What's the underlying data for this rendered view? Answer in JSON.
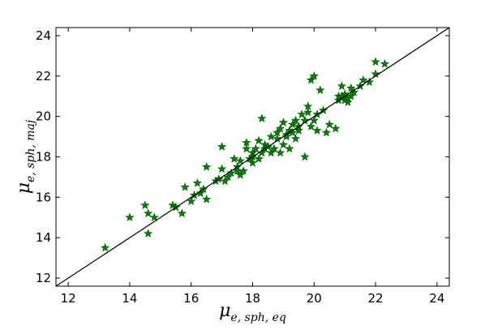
{
  "chart_data": {
    "type": "scatter",
    "xlabel": {
      "main": "μ",
      "sub": "e, sph, eq"
    },
    "ylabel": {
      "main": "μ",
      "sub": "e, sph, maj"
    },
    "xlim": [
      11.6,
      24.4
    ],
    "ylim": [
      11.6,
      24.4
    ],
    "xticks": [
      12,
      14,
      16,
      18,
      20,
      22,
      24
    ],
    "yticks": [
      12,
      14,
      16,
      18,
      20,
      22,
      24
    ],
    "marker": "star",
    "marker_color": "#008000",
    "reference_line": {
      "from": [
        11.6,
        11.6
      ],
      "to": [
        24.4,
        24.4
      ],
      "color": "#000000"
    },
    "points": [
      [
        13.2,
        13.5
      ],
      [
        14.0,
        15.0
      ],
      [
        14.5,
        15.6
      ],
      [
        14.6,
        14.2
      ],
      [
        14.6,
        15.2
      ],
      [
        14.8,
        15.0
      ],
      [
        15.4,
        15.6
      ],
      [
        15.5,
        15.5
      ],
      [
        15.7,
        15.2
      ],
      [
        15.8,
        16.5
      ],
      [
        16.0,
        15.8
      ],
      [
        16.1,
        16.1
      ],
      [
        16.2,
        16.7
      ],
      [
        16.3,
        16.2
      ],
      [
        16.4,
        16.4
      ],
      [
        16.5,
        15.9
      ],
      [
        16.5,
        17.5
      ],
      [
        16.8,
        16.8
      ],
      [
        16.9,
        16.9
      ],
      [
        17.0,
        17.4
      ],
      [
        17.0,
        18.5
      ],
      [
        17.1,
        16.8
      ],
      [
        17.2,
        17.0
      ],
      [
        17.3,
        17.2
      ],
      [
        17.4,
        17.9
      ],
      [
        17.5,
        17.5
      ],
      [
        17.5,
        17.3
      ],
      [
        17.6,
        17.8
      ],
      [
        17.6,
        17.1
      ],
      [
        17.7,
        17.3
      ],
      [
        17.8,
        18.4
      ],
      [
        17.8,
        18.7
      ],
      [
        17.9,
        17.9
      ],
      [
        18.0,
        18.2
      ],
      [
        18.0,
        17.7
      ],
      [
        18.0,
        18.0
      ],
      [
        18.1,
        18.4
      ],
      [
        18.2,
        17.9
      ],
      [
        18.2,
        18.8
      ],
      [
        18.3,
        18.2
      ],
      [
        18.3,
        19.9
      ],
      [
        18.4,
        18.6
      ],
      [
        18.4,
        18.4
      ],
      [
        18.5,
        18.5
      ],
      [
        18.6,
        18.2
      ],
      [
        18.6,
        19.0
      ],
      [
        18.7,
        18.4
      ],
      [
        18.8,
        18.9
      ],
      [
        18.8,
        19.2
      ],
      [
        18.9,
        18.2
      ],
      [
        18.9,
        19.4
      ],
      [
        19.0,
        18.6
      ],
      [
        19.0,
        19.7
      ],
      [
        19.1,
        19.1
      ],
      [
        19.1,
        19.0
      ],
      [
        19.2,
        19.3
      ],
      [
        19.2,
        18.4
      ],
      [
        19.3,
        19.6
      ],
      [
        19.3,
        19.2
      ],
      [
        19.4,
        18.9
      ],
      [
        19.4,
        19.8
      ],
      [
        19.5,
        19.5
      ],
      [
        19.5,
        19.3
      ],
      [
        19.6,
        20.1
      ],
      [
        19.7,
        18.0
      ],
      [
        19.7,
        19.8
      ],
      [
        19.8,
        20.5
      ],
      [
        19.8,
        20.2
      ],
      [
        19.9,
        21.8
      ],
      [
        19.9,
        19.5
      ],
      [
        20.0,
        22.0
      ],
      [
        20.0,
        19.8
      ],
      [
        20.1,
        20.1
      ],
      [
        20.1,
        19.3
      ],
      [
        20.2,
        21.3
      ],
      [
        20.3,
        20.3
      ],
      [
        20.4,
        19.2
      ],
      [
        20.5,
        19.6
      ],
      [
        20.7,
        19.4
      ],
      [
        20.8,
        20.8
      ],
      [
        20.8,
        21.0
      ],
      [
        20.9,
        21.5
      ],
      [
        21.0,
        20.8
      ],
      [
        21.0,
        21.1
      ],
      [
        21.1,
        20.7
      ],
      [
        21.2,
        21.0
      ],
      [
        21.2,
        21.4
      ],
      [
        21.3,
        21.2
      ],
      [
        21.5,
        21.5
      ],
      [
        21.6,
        21.8
      ],
      [
        21.8,
        21.7
      ],
      [
        22.0,
        22.1
      ],
      [
        22.0,
        22.7
      ],
      [
        22.3,
        22.6
      ],
      [
        21.1,
        20.9
      ],
      [
        20.9,
        21.0
      ]
    ]
  }
}
